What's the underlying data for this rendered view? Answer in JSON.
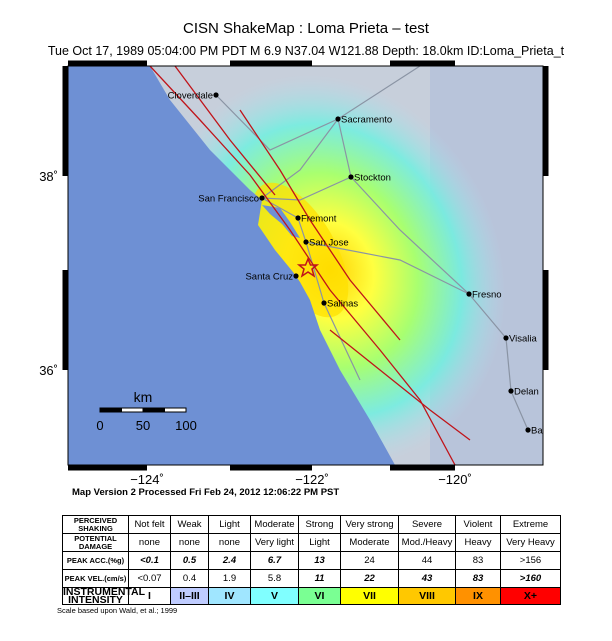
{
  "header": {
    "title": "CISN ShakeMap :   Loma Prieta – test",
    "subtitle": "Tue Oct 17, 1989 05:04:00 PM PDT   M 6.9   N37.04 W121.88   Depth: 18.0km   ID:Loma_Prieta_t"
  },
  "map": {
    "lat_labels": [
      "38˚",
      "36˚"
    ],
    "lon_labels": [
      "−124˚",
      "−122˚",
      "−120˚"
    ],
    "cities": [
      "Cloverdale",
      "Sacramento",
      "Stockton",
      "San Francisco",
      "Fremont",
      "San Jose",
      "Santa Cruz",
      "Salinas",
      "Fresno",
      "Visalia",
      "Delan",
      "Ba"
    ],
    "scale": {
      "unit": "km",
      "labels": [
        "0",
        "50",
        "100"
      ]
    }
  },
  "caption": "Map Version 2 Processed Fri Feb 24, 2012 12:06:22 PM PST",
  "table": {
    "rows": [
      {
        "label": "PERCEIVED SHAKING",
        "cells": [
          "Not felt",
          "Weak",
          "Light",
          "Moderate",
          "Strong",
          "Very strong",
          "Severe",
          "Violent",
          "Extreme"
        ]
      },
      {
        "label": "POTENTIAL DAMAGE",
        "cells": [
          "none",
          "none",
          "none",
          "Very light",
          "Light",
          "Moderate",
          "Mod./Heavy",
          "Heavy",
          "Very Heavy"
        ]
      },
      {
        "label": "PEAK ACC.(%g)",
        "cells": [
          "<0.1",
          "0.5",
          "2.4",
          "6.7",
          "13",
          "24",
          "44",
          "83",
          ">156"
        ]
      },
      {
        "label": "PEAK VEL.(cm/s)",
        "cells": [
          "<0.07",
          "0.4",
          "1.9",
          "5.8",
          "11",
          "22",
          "43",
          "83",
          ">160"
        ]
      },
      {
        "label": "INSTRUMENTAL INTENSITY",
        "cells": [
          "I",
          "II–III",
          "IV",
          "V",
          "VI",
          "VII",
          "VIII",
          "IX",
          "X+"
        ]
      }
    ]
  },
  "footer": "Scale based upon Wald, et al.; 1999"
}
